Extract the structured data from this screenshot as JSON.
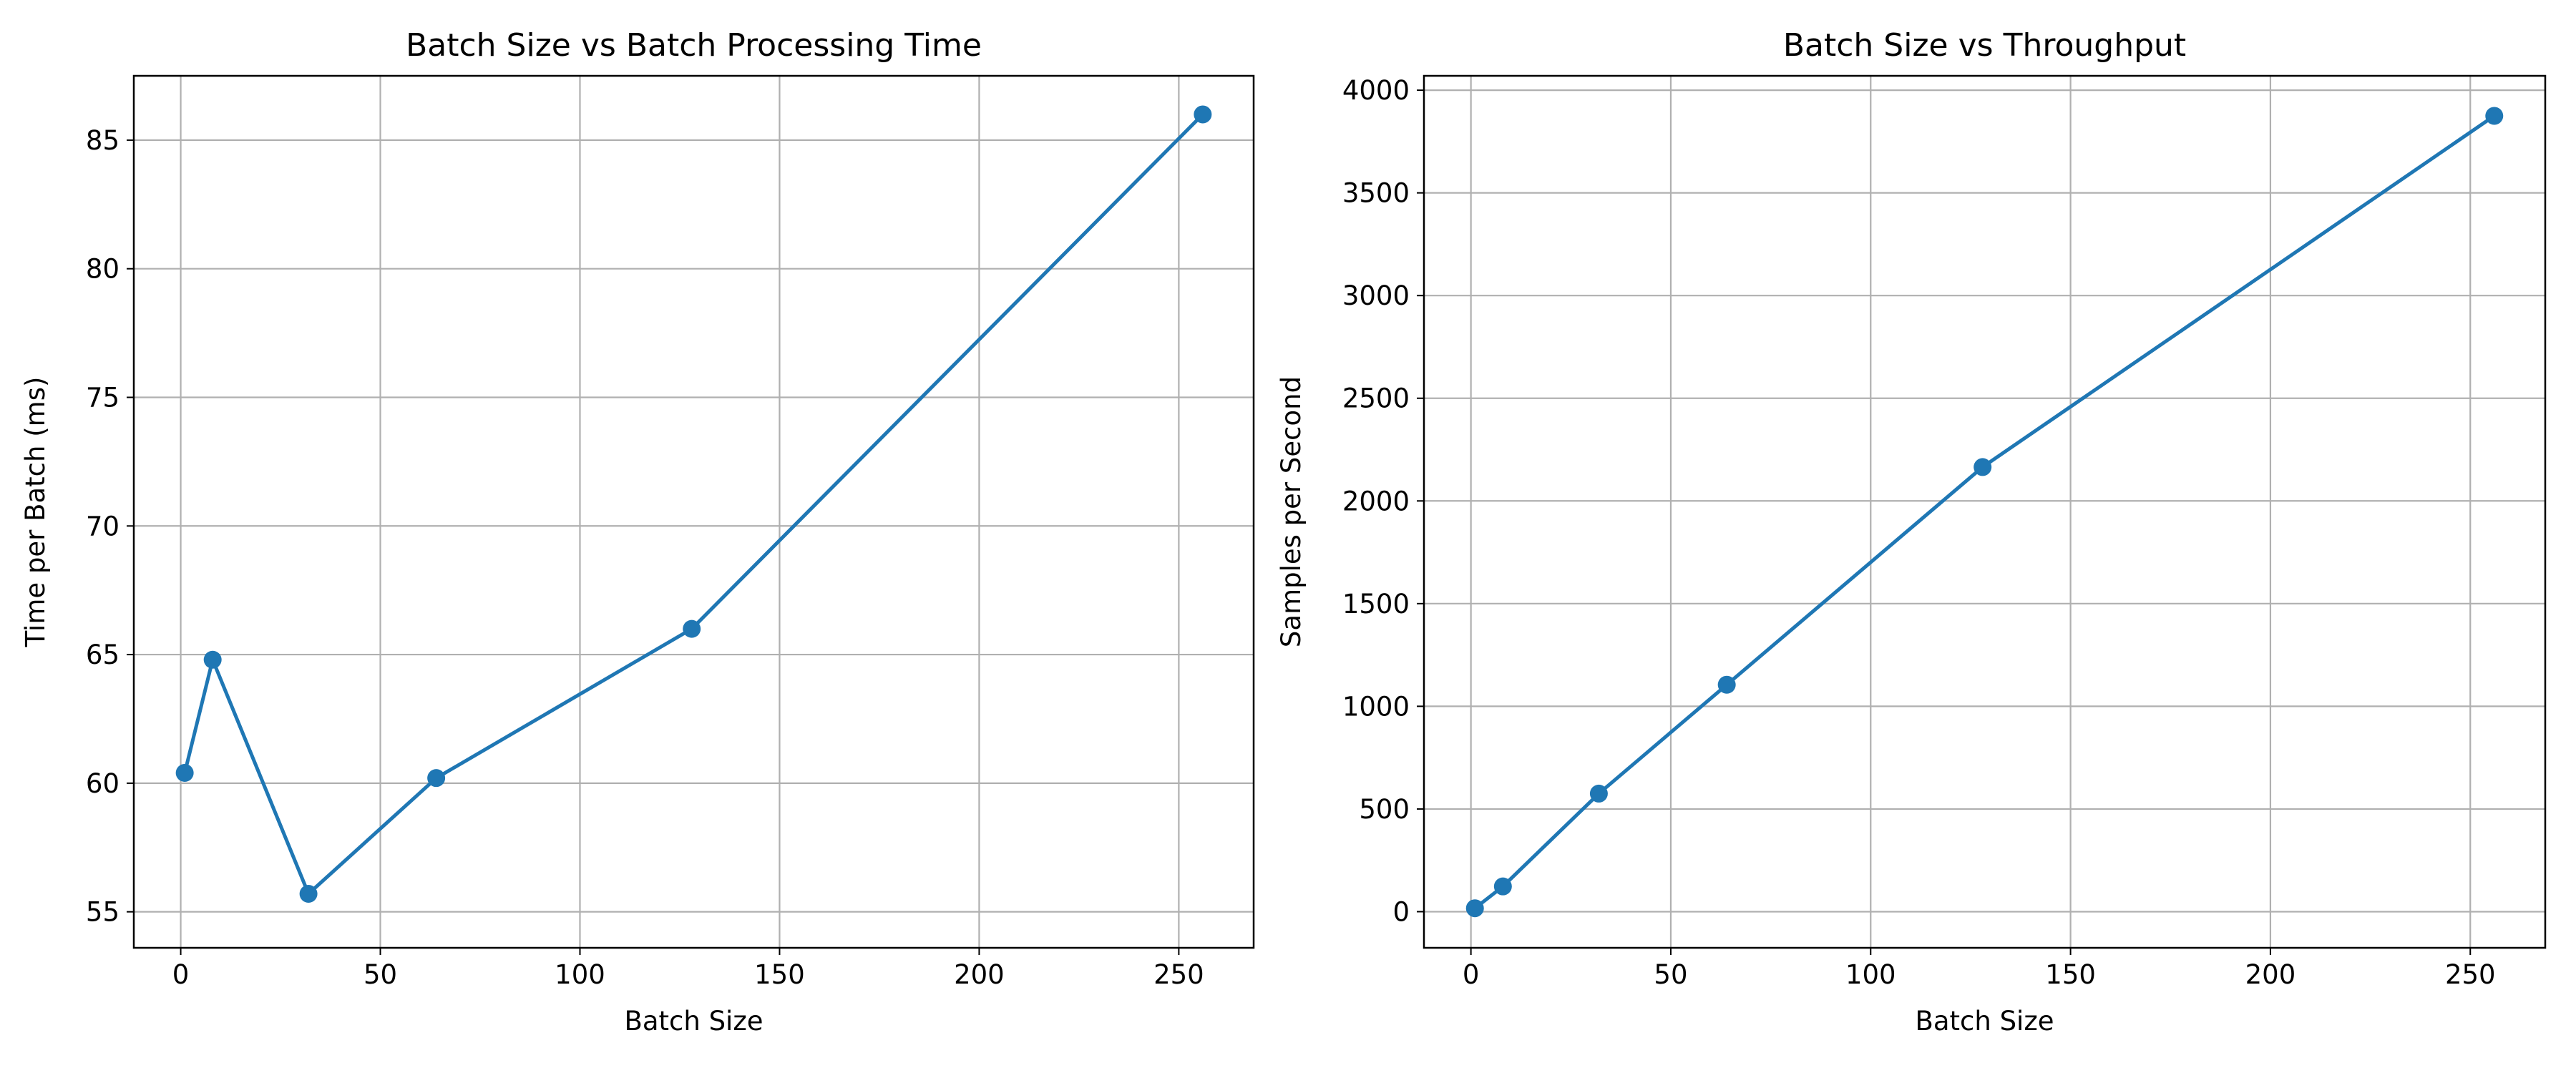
{
  "colors": {
    "series": "#1f77b4",
    "grid": "#b0b0b0",
    "axis": "#000000",
    "background": "#ffffff"
  },
  "chart_data": [
    {
      "type": "line",
      "title": "Batch Size vs Batch Processing Time",
      "xlabel": "Batch Size",
      "ylabel": "Time per Batch (ms)",
      "grid": true,
      "xlim": [
        -11.75,
        268.75
      ],
      "ylim": [
        53.6,
        87.5
      ],
      "xticks": [
        0,
        50,
        100,
        150,
        200,
        250
      ],
      "yticks": [
        55,
        60,
        65,
        70,
        75,
        80,
        85
      ],
      "x": [
        1,
        8,
        32,
        64,
        128,
        256
      ],
      "series": [
        {
          "values": [
            60.4,
            64.8,
            55.7,
            60.2,
            66.0,
            86.0
          ]
        }
      ]
    },
    {
      "type": "line",
      "title": "Batch Size vs Throughput",
      "xlabel": "Batch Size",
      "ylabel": "Samples per Second",
      "grid": true,
      "xlim": [
        -11.75,
        268.75
      ],
      "ylim": [
        -176,
        4070
      ],
      "xticks": [
        0,
        50,
        100,
        150,
        200,
        250
      ],
      "yticks": [
        0,
        500,
        1000,
        1500,
        2000,
        2500,
        3000,
        3500,
        4000
      ],
      "x": [
        1,
        8,
        32,
        64,
        128,
        256
      ],
      "series": [
        {
          "values": [
            16.6,
            123,
            575,
            1105,
            2165,
            3875
          ]
        }
      ]
    }
  ]
}
